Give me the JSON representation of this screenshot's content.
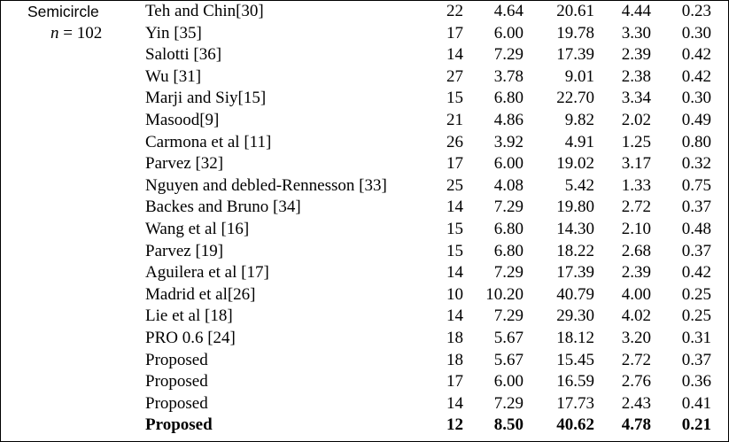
{
  "group": {
    "shape": "Semicircle",
    "n_label": "n",
    "n_value": " = 102"
  },
  "rows": [
    {
      "method": "Teh and Chin[30]",
      "v": [
        "22",
        "4.64",
        "20.61",
        "4.44",
        "0.23"
      ]
    },
    {
      "method": "Yin [35]",
      "v": [
        "17",
        "6.00",
        "19.78",
        "3.30",
        "0.30"
      ]
    },
    {
      "method": "Salotti [36]",
      "v": [
        "14",
        "7.29",
        "17.39",
        "2.39",
        "0.42"
      ]
    },
    {
      "method": "Wu [31]",
      "v": [
        "27",
        "3.78",
        "9.01",
        "2.38",
        "0.42"
      ]
    },
    {
      "method": "Marji and Siy[15]",
      "v": [
        "15",
        "6.80",
        "22.70",
        "3.34",
        "0.30"
      ]
    },
    {
      "method": "Masood[9]",
      "v": [
        "21",
        "4.86",
        "9.82",
        "2.02",
        "0.49"
      ]
    },
    {
      "method": "Carmona et al [11]",
      "v": [
        "26",
        "3.92",
        "4.91",
        "1.25",
        "0.80"
      ]
    },
    {
      "method": "Parvez [32]",
      "v": [
        "17",
        "6.00",
        "19.02",
        "3.17",
        "0.32"
      ]
    },
    {
      "method": "Nguyen and debled-Rennesson [33]",
      "v": [
        "25",
        "4.08",
        "5.42",
        "1.33",
        "0.75"
      ]
    },
    {
      "method": "Backes and Bruno [34]",
      "v": [
        "14",
        "7.29",
        "19.80",
        "2.72",
        "0.37"
      ]
    },
    {
      "method": "Wang et al [16]",
      "v": [
        "15",
        "6.80",
        "14.30",
        "2.10",
        "0.48"
      ]
    },
    {
      "method": "Parvez [19]",
      "v": [
        "15",
        "6.80",
        "18.22",
        "2.68",
        "0.37"
      ]
    },
    {
      "method": "Aguilera et al [17]",
      "v": [
        "14",
        "7.29",
        "17.39",
        "2.39",
        "0.42"
      ]
    },
    {
      "method": "Madrid et al[26]",
      "v": [
        "10",
        "10.20",
        "40.79",
        "4.00",
        "0.25"
      ]
    },
    {
      "method": "Lie et al [18]",
      "v": [
        "14",
        "7.29",
        "29.30",
        "4.02",
        "0.25"
      ]
    },
    {
      "method": "PRO 0.6 [24]",
      "v": [
        "18",
        "5.67",
        "18.12",
        "3.20",
        "0.31"
      ]
    },
    {
      "method": "Proposed",
      "v": [
        "18",
        "5.67",
        "15.45",
        "2.72",
        "0.37"
      ]
    },
    {
      "method": "Proposed",
      "v": [
        "17",
        "6.00",
        "16.59",
        "2.76",
        "0.36"
      ]
    },
    {
      "method": "Proposed",
      "v": [
        "14",
        "7.29",
        "17.73",
        "2.43",
        "0.41"
      ]
    },
    {
      "method": "Proposed",
      "v": [
        "12",
        "8.50",
        "40.62",
        "4.78",
        "0.21"
      ],
      "bold": true
    }
  ]
}
